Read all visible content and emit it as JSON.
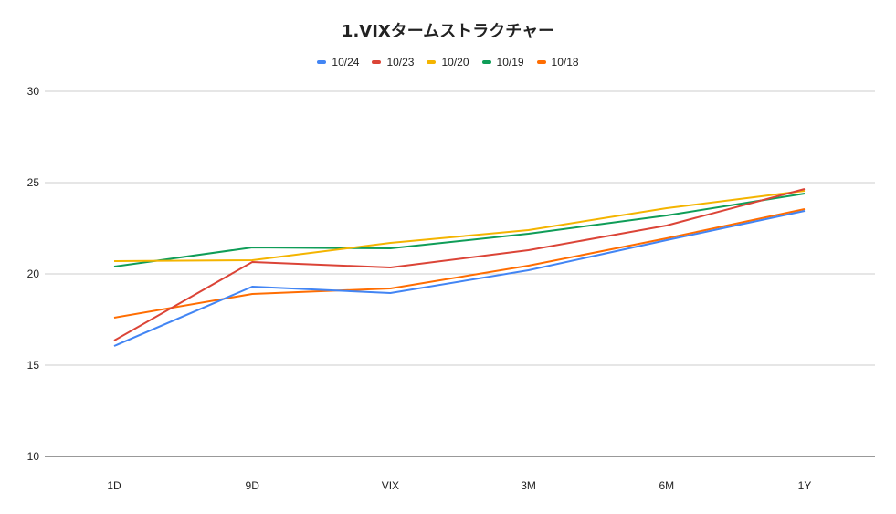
{
  "chart_data": {
    "type": "line",
    "title": "1.VIXタームストラクチャー",
    "categories": [
      "1D",
      "9D",
      "VIX",
      "3M",
      "6M",
      "1Y"
    ],
    "ylim": [
      10,
      30
    ],
    "yticks": [
      10,
      15,
      20,
      25,
      30
    ],
    "grid": true,
    "legend_position": "top",
    "series": [
      {
        "name": "10/24",
        "color": "#4285f4",
        "values": [
          16.05,
          19.3,
          18.95,
          20.2,
          21.85,
          23.45
        ]
      },
      {
        "name": "10/23",
        "color": "#db4437",
        "values": [
          16.35,
          20.65,
          20.35,
          21.3,
          22.65,
          24.65
        ]
      },
      {
        "name": "10/20",
        "color": "#f4b400",
        "values": [
          20.7,
          20.75,
          21.7,
          22.4,
          23.6,
          24.55
        ]
      },
      {
        "name": "10/19",
        "color": "#0f9d58",
        "values": [
          20.4,
          21.45,
          21.4,
          22.2,
          23.2,
          24.4
        ]
      },
      {
        "name": "10/18",
        "color": "#ff6d01",
        "values": [
          17.6,
          18.9,
          19.2,
          20.45,
          21.95,
          23.55
        ]
      }
    ]
  }
}
